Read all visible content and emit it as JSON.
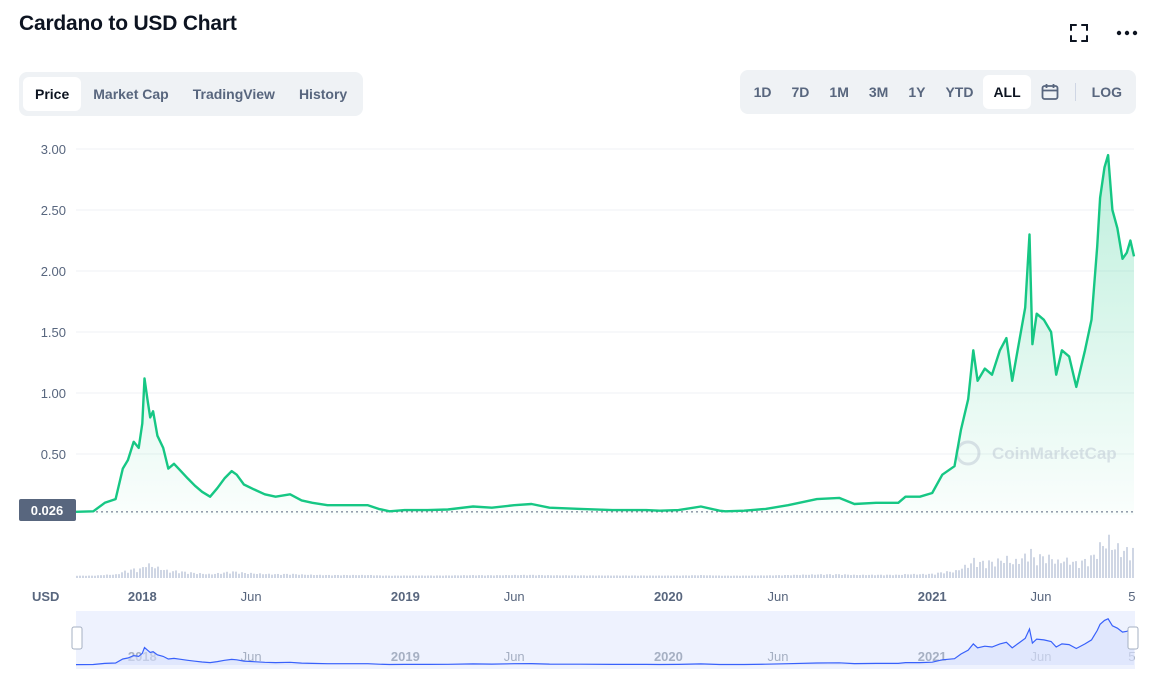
{
  "title": "Cardano to USD Chart",
  "tabs": [
    "Price",
    "Market Cap",
    "TradingView",
    "History"
  ],
  "active_tab": "Price",
  "ranges": [
    "1D",
    "7D",
    "1M",
    "3M",
    "1Y",
    "YTD",
    "ALL"
  ],
  "active_range": "ALL",
  "log_label": "LOG",
  "icons": {
    "fullscreen": "fullscreen-icon",
    "more": "more-dots-icon",
    "calendar": "calendar-icon"
  },
  "currency_label": "USD",
  "price_marker": "0.026",
  "watermark": "CoinMarketCap",
  "colors": {
    "line": "#16c784",
    "volume": "#cfd6e4",
    "navigator_line": "#3861fb",
    "navigator_bg": "#eef2fe"
  },
  "chart_data": {
    "type": "line",
    "title": "Cardano to USD Chart",
    "ylim": [
      0,
      3.0
    ],
    "yticks": [
      "3.00",
      "2.50",
      "2.00",
      "1.50",
      "1.00",
      "0.50"
    ],
    "x_tick_labels": [
      {
        "label": "2018",
        "date": "2018-01-01",
        "bold": true
      },
      {
        "label": "Jun",
        "date": "2018-06-01",
        "bold": false
      },
      {
        "label": "2019",
        "date": "2019-01-01",
        "bold": true
      },
      {
        "label": "Jun",
        "date": "2019-06-01",
        "bold": false
      },
      {
        "label": "2020",
        "date": "2020-01-01",
        "bold": true
      },
      {
        "label": "Jun",
        "date": "2020-06-01",
        "bold": false
      },
      {
        "label": "2021",
        "date": "2021-01-01",
        "bold": true
      },
      {
        "label": "Jun",
        "date": "2021-06-01",
        "bold": false
      },
      {
        "label": "5",
        "date": "2021-10-05",
        "bold": false
      }
    ],
    "series": [
      {
        "points": [
          [
            "2017-10-01",
            0.026
          ],
          [
            "2017-10-25",
            0.03
          ],
          [
            "2017-11-10",
            0.1
          ],
          [
            "2017-11-25",
            0.13
          ],
          [
            "2017-12-05",
            0.38
          ],
          [
            "2017-12-12",
            0.45
          ],
          [
            "2017-12-20",
            0.6
          ],
          [
            "2017-12-27",
            0.55
          ],
          [
            "2018-01-01",
            0.75
          ],
          [
            "2018-01-04",
            1.12
          ],
          [
            "2018-01-08",
            0.95
          ],
          [
            "2018-01-12",
            0.8
          ],
          [
            "2018-01-16",
            0.85
          ],
          [
            "2018-01-22",
            0.65
          ],
          [
            "2018-01-30",
            0.55
          ],
          [
            "2018-02-06",
            0.38
          ],
          [
            "2018-02-14",
            0.42
          ],
          [
            "2018-02-22",
            0.37
          ],
          [
            "2018-03-05",
            0.3
          ],
          [
            "2018-03-15",
            0.24
          ],
          [
            "2018-03-25",
            0.19
          ],
          [
            "2018-04-05",
            0.15
          ],
          [
            "2018-04-15",
            0.22
          ],
          [
            "2018-04-25",
            0.3
          ],
          [
            "2018-05-05",
            0.36
          ],
          [
            "2018-05-12",
            0.33
          ],
          [
            "2018-05-22",
            0.25
          ],
          [
            "2018-06-05",
            0.21
          ],
          [
            "2018-06-20",
            0.17
          ],
          [
            "2018-07-05",
            0.15
          ],
          [
            "2018-07-25",
            0.17
          ],
          [
            "2018-08-10",
            0.12
          ],
          [
            "2018-08-25",
            0.1
          ],
          [
            "2018-09-15",
            0.08
          ],
          [
            "2018-10-15",
            0.08
          ],
          [
            "2018-11-10",
            0.08
          ],
          [
            "2018-11-25",
            0.05
          ],
          [
            "2018-12-10",
            0.03
          ],
          [
            "2018-12-31",
            0.04
          ],
          [
            "2019-02-01",
            0.04
          ],
          [
            "2019-03-01",
            0.045
          ],
          [
            "2019-04-05",
            0.07
          ],
          [
            "2019-05-01",
            0.06
          ],
          [
            "2019-06-01",
            0.08
          ],
          [
            "2019-06-25",
            0.09
          ],
          [
            "2019-07-20",
            0.06
          ],
          [
            "2019-09-01",
            0.05
          ],
          [
            "2019-10-15",
            0.04
          ],
          [
            "2019-12-01",
            0.04
          ],
          [
            "2019-12-20",
            0.035
          ],
          [
            "2020-01-15",
            0.04
          ],
          [
            "2020-02-15",
            0.07
          ],
          [
            "2020-03-12",
            0.035
          ],
          [
            "2020-03-20",
            0.03
          ],
          [
            "2020-04-15",
            0.035
          ],
          [
            "2020-05-15",
            0.05
          ],
          [
            "2020-06-15",
            0.08
          ],
          [
            "2020-07-25",
            0.13
          ],
          [
            "2020-08-25",
            0.14
          ],
          [
            "2020-09-15",
            0.09
          ],
          [
            "2020-10-15",
            0.1
          ],
          [
            "2020-11-15",
            0.1
          ],
          [
            "2020-11-25",
            0.15
          ],
          [
            "2020-12-15",
            0.15
          ],
          [
            "2021-01-01",
            0.18
          ],
          [
            "2021-01-15",
            0.33
          ],
          [
            "2021-02-01",
            0.4
          ],
          [
            "2021-02-10",
            0.7
          ],
          [
            "2021-02-20",
            0.95
          ],
          [
            "2021-02-27",
            1.35
          ],
          [
            "2021-03-05",
            1.1
          ],
          [
            "2021-03-15",
            1.2
          ],
          [
            "2021-03-25",
            1.15
          ],
          [
            "2021-04-05",
            1.35
          ],
          [
            "2021-04-14",
            1.45
          ],
          [
            "2021-04-22",
            1.1
          ],
          [
            "2021-05-01",
            1.4
          ],
          [
            "2021-05-10",
            1.7
          ],
          [
            "2021-05-16",
            2.3
          ],
          [
            "2021-05-20",
            1.4
          ],
          [
            "2021-05-26",
            1.65
          ],
          [
            "2021-06-05",
            1.6
          ],
          [
            "2021-06-15",
            1.5
          ],
          [
            "2021-06-22",
            1.15
          ],
          [
            "2021-06-30",
            1.35
          ],
          [
            "2021-07-10",
            1.3
          ],
          [
            "2021-07-20",
            1.05
          ],
          [
            "2021-08-01",
            1.35
          ],
          [
            "2021-08-10",
            1.6
          ],
          [
            "2021-08-18",
            2.2
          ],
          [
            "2021-08-22",
            2.6
          ],
          [
            "2021-08-28",
            2.85
          ],
          [
            "2021-09-02",
            2.95
          ],
          [
            "2021-09-08",
            2.5
          ],
          [
            "2021-09-15",
            2.35
          ],
          [
            "2021-09-22",
            2.1
          ],
          [
            "2021-09-28",
            2.15
          ],
          [
            "2021-10-03",
            2.25
          ],
          [
            "2021-10-08",
            2.12
          ]
        ]
      }
    ]
  }
}
